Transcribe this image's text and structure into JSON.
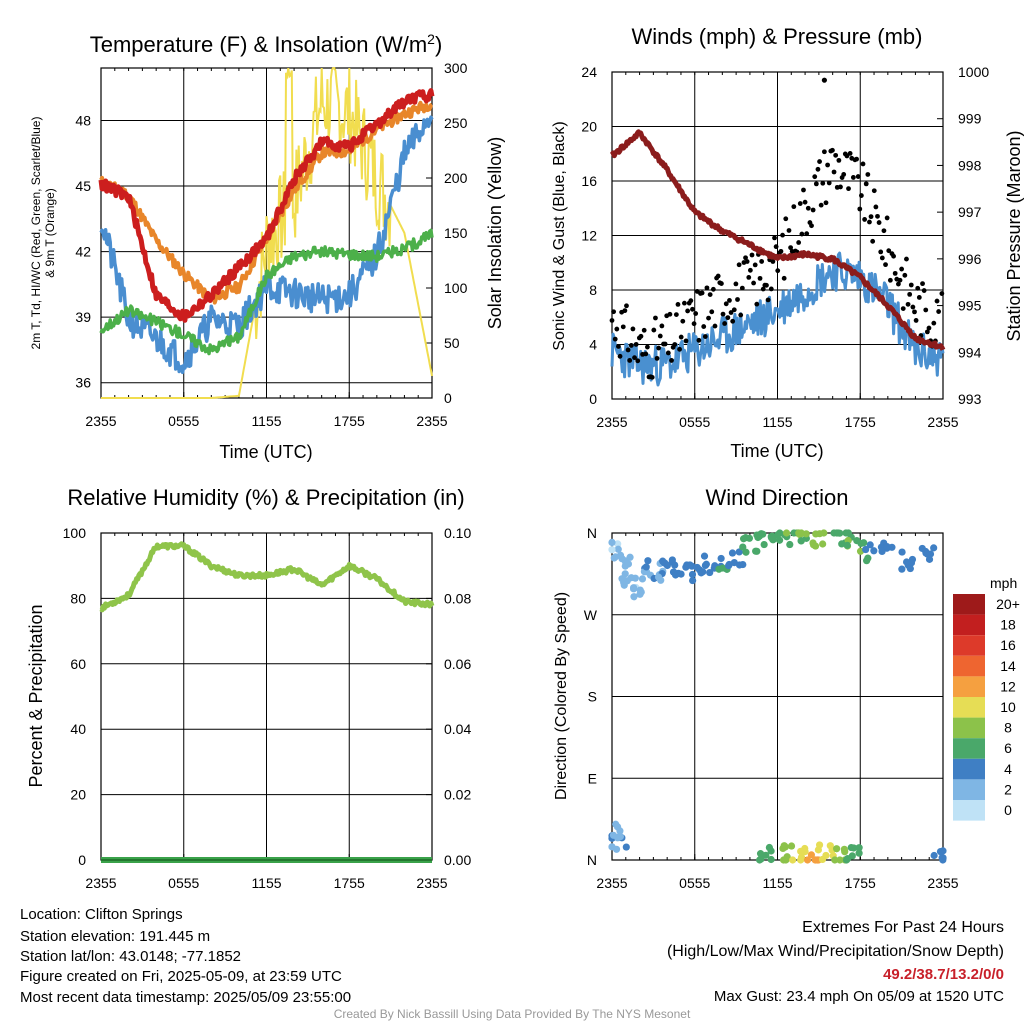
{
  "chart_data": [
    {
      "id": "temperature",
      "type": "line",
      "title": "Temperature (F) & Insolation (W/m²)",
      "xlabel": "Time (UTC)",
      "ylabel_lines": [
        "2m T, Td, HI/WC (Red, Green, Scarlet/Blue)",
        "& 9m T (Orange)"
      ],
      "y2label": "Solar Insolation (Yellow)",
      "x_ticks": [
        "2355",
        "0555",
        "1155",
        "1755",
        "2355"
      ],
      "y_ticks": [
        36,
        39,
        42,
        45,
        48
      ],
      "y2_ticks": [
        0,
        50,
        100,
        150,
        200,
        250,
        300
      ],
      "ylim": [
        35.3,
        50.4
      ],
      "y2lim": [
        0,
        300
      ],
      "x_hours": [
        0,
        2,
        4,
        6,
        8,
        10,
        12,
        14,
        16,
        18,
        20,
        22,
        24
      ],
      "series": [
        {
          "color": "#e8862a",
          "values": [
            45.2,
            44.6,
            42.5,
            41.0,
            39.8,
            40.4,
            42.6,
            44.8,
            46.5,
            46.6,
            47.6,
            48.3,
            48.8
          ]
        },
        {
          "color": "#cc1e1e",
          "values": [
            45.1,
            44.5,
            40.0,
            39.0,
            40.0,
            41.3,
            42.6,
            45.3,
            47.0,
            46.8,
            47.8,
            48.9,
            49.2
          ]
        },
        {
          "color": "#4a8ed0",
          "values": [
            43.5,
            38.9,
            38.0,
            37.0,
            38.9,
            38.6,
            40.4,
            40.1,
            39.8,
            40.0,
            41.8,
            46.4,
            48.4
          ]
        },
        {
          "color": "#4cb04a",
          "values": [
            38.4,
            39.3,
            38.8,
            38.2,
            37.5,
            38.1,
            40.9,
            41.8,
            42.0,
            41.9,
            41.8,
            42.1,
            42.8
          ]
        }
      ],
      "insolation": [
        0,
        0,
        0,
        0,
        0,
        2,
        140,
        180,
        270,
        260,
        200,
        150,
        20
      ]
    },
    {
      "id": "winds",
      "type": "line",
      "title": "Winds (mph) & Pressure (mb)",
      "xlabel": "Time (UTC)",
      "ylabel": "Sonic Wind & Gust (Blue, Black)",
      "y2label": "Station Pressure (Maroon)",
      "x_ticks": [
        "2355",
        "0555",
        "1155",
        "1755",
        "2355"
      ],
      "y_ticks": [
        0,
        4,
        8,
        12,
        16,
        20,
        24
      ],
      "y2_ticks": [
        993,
        994,
        995,
        996,
        997,
        998,
        999,
        1000
      ],
      "ylim": [
        0,
        24
      ],
      "y2lim": [
        993,
        1000
      ],
      "x_hours": [
        0,
        2,
        4,
        6,
        8,
        10,
        12,
        14,
        16,
        18,
        20,
        22,
        24
      ],
      "wind": [
        3.5,
        2.5,
        2.5,
        3.5,
        4.5,
        5.5,
        6.5,
        8.0,
        9.5,
        9.0,
        7.0,
        3.5,
        3.0
      ],
      "gust": [
        6.0,
        3.5,
        4.0,
        6.0,
        7.5,
        8.5,
        10.0,
        14.0,
        17.5,
        15.5,
        11.0,
        7.0,
        5.5
      ],
      "max_gust": 23.4,
      "pressure": [
        998.2,
        998.7,
        997.9,
        997.0,
        996.6,
        996.3,
        996.0,
        996.1,
        996.0,
        995.6,
        995.0,
        994.3,
        994.1
      ]
    },
    {
      "id": "humidity",
      "type": "line",
      "title": "Relative Humidity (%) & Precipitation (in)",
      "ylabel": "Percent & Precipitation",
      "x_ticks": [
        "2355",
        "0555",
        "1155",
        "1755",
        "2355"
      ],
      "y_ticks": [
        0,
        20,
        40,
        60,
        80,
        100
      ],
      "y2_ticks": [
        "0.00",
        "0.02",
        "0.04",
        "0.06",
        "0.08",
        "0.10"
      ],
      "ylim": [
        0,
        100
      ],
      "y2lim": [
        0,
        0.1
      ],
      "x_hours": [
        0,
        2,
        4,
        6,
        8,
        10,
        12,
        14,
        16,
        18,
        20,
        22,
        24
      ],
      "rh": [
        77,
        81,
        96,
        96,
        90,
        87,
        87,
        89,
        84,
        90,
        86,
        79,
        78
      ],
      "precip": 0
    },
    {
      "id": "direction",
      "type": "scatter",
      "title": "Wind Direction",
      "ylabel": "Direction (Colored By Speed)",
      "x_ticks": [
        "2355",
        "0555",
        "1155",
        "1755",
        "2355"
      ],
      "y_ticks": [
        "N",
        "E",
        "S",
        "W",
        "N"
      ],
      "ylim": [
        0,
        360
      ],
      "legend_title": "mph",
      "legend_labels": [
        "20+",
        "18",
        "16",
        "14",
        "12",
        "10",
        "8",
        "6",
        "4",
        "2",
        "0"
      ],
      "legend_colors": [
        "#9e1a1a",
        "#c21f1f",
        "#dd3a2a",
        "#ee6530",
        "#f5a040",
        "#e6dd55",
        "#8cc24a",
        "#4aa86a",
        "#3f7fc4",
        "#7fb6e4",
        "#bfe2f6"
      ],
      "points": [
        [
          0.3,
          340,
          1
        ],
        [
          0.8,
          325,
          2
        ],
        [
          1.2,
          310,
          1
        ],
        [
          1.8,
          300,
          2
        ],
        [
          2.5,
          320,
          3
        ],
        [
          3.2,
          318,
          3
        ],
        [
          4.0,
          322,
          4
        ],
        [
          5.0,
          320,
          4
        ],
        [
          6.0,
          315,
          4
        ],
        [
          7.0,
          325,
          4
        ],
        [
          8.0,
          330,
          5
        ],
        [
          9.0,
          335,
          4
        ],
        [
          10.0,
          345,
          5
        ],
        [
          11.0,
          350,
          6
        ],
        [
          12.0,
          355,
          6
        ],
        [
          13.0,
          358,
          7
        ],
        [
          14.0,
          357,
          7
        ],
        [
          15.0,
          355,
          8
        ],
        [
          16.5,
          357,
          6
        ],
        [
          17.5,
          350,
          7
        ],
        [
          18.5,
          340,
          5
        ],
        [
          20.0,
          345,
          4
        ],
        [
          21.5,
          330,
          4
        ],
        [
          23.0,
          340,
          4
        ],
        [
          0.2,
          30,
          3
        ],
        [
          0.5,
          20,
          3
        ],
        [
          11.0,
          3,
          6
        ],
        [
          12.5,
          5,
          8
        ],
        [
          13.5,
          8,
          10
        ],
        [
          14.5,
          4,
          12
        ],
        [
          15.5,
          6,
          10
        ],
        [
          16.5,
          3,
          8
        ],
        [
          17.5,
          5,
          6
        ],
        [
          23.9,
          3,
          4
        ]
      ]
    }
  ],
  "info": {
    "location": "Location: Clifton Springs",
    "elevation": "Station elevation: 191.445 m",
    "latlon": "Station lat/lon: 43.0148; -77.1852",
    "created": "Figure created on Fri, 2025-05-09, at 23:59 UTC",
    "recent": "Most recent data timestamp: 2025/05/09 23:55:00"
  },
  "extremes": {
    "title": "Extremes For Past 24 Hours",
    "subtitle": "(High/Low/Max Wind/Precipitation/Snow Depth)",
    "values": "49.2/38.7/13.2/0/0",
    "gust": "Max Gust: 23.4 mph On 05/09 at 1520 UTC"
  },
  "credit": "Created By Nick Bassill Using Data Provided By The NYS Mesonet"
}
